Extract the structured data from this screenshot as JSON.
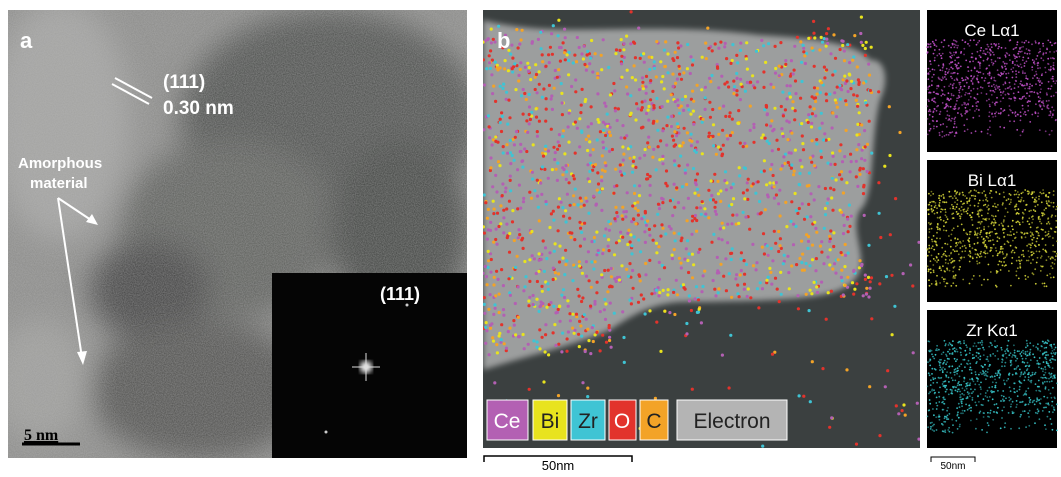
{
  "panel_a": {
    "label": "a",
    "plane_label": "(111)",
    "spacing_label": "0.30 nm",
    "annotation": [
      "Amorphous",
      "material"
    ],
    "inset_label": "(111)",
    "scale_bar": "5 nm"
  },
  "panel_b": {
    "label": "b",
    "legend": [
      "Ce",
      "Bi",
      "Zr",
      "O",
      "C",
      "Electron"
    ],
    "scale_bar": "50nm",
    "maps": [
      {
        "label": "Ce Lα1"
      },
      {
        "label": "Bi Lα1"
      },
      {
        "label": "Zr Kα1"
      }
    ],
    "map_scale_bar": "50nm"
  }
}
